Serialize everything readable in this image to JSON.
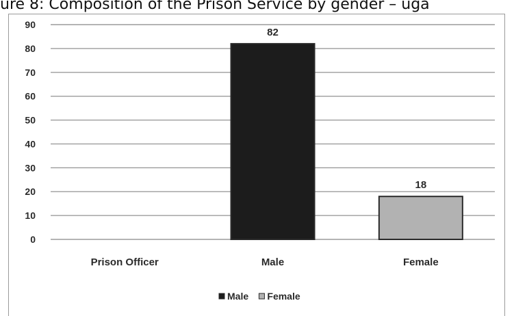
{
  "page": {
    "title": "ure 8: Composition of the Prison Service by gender – uga"
  },
  "chart_data": {
    "type": "bar",
    "title": "",
    "xlabel": "",
    "ylabel": "",
    "categories": [
      "Prison Officer",
      "Male",
      "Female"
    ],
    "series": [
      {
        "name": "Male",
        "color": "#1c1c1c",
        "values": [
          null,
          82,
          null
        ]
      },
      {
        "name": "Female",
        "color": "#b2b2b2",
        "values": [
          null,
          null,
          18
        ]
      }
    ],
    "data_labels": [
      "82",
      "18"
    ],
    "ylim": [
      0,
      90
    ],
    "yticks": [
      0,
      10,
      20,
      30,
      40,
      50,
      60,
      70,
      80,
      90
    ],
    "grid": true,
    "legend": {
      "position": "bottom",
      "entries": [
        "Male",
        "Female"
      ]
    }
  }
}
